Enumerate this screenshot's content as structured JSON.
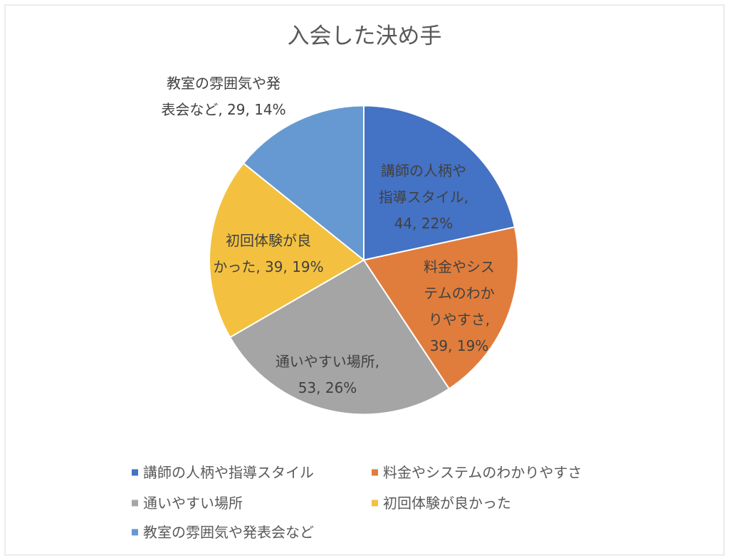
{
  "chart_data": {
    "type": "pie",
    "title": "入会した決め手",
    "categories": [
      "講師の人柄や指導スタイル",
      "料金やシステムのわかりやすさ",
      "通いやすい場所",
      "初回体験が良かった",
      "教室の雰囲気や発表会など"
    ],
    "values": [
      44,
      39,
      53,
      39,
      29
    ],
    "colors": [
      "#4472C4",
      "#E07D3C",
      "#A5A5A5",
      "#F3C13F",
      "#6699D1"
    ],
    "data_labels": [
      [
        "講師の人柄や",
        "指導スタイル,",
        "44, 22%"
      ],
      [
        "料金やシス",
        "テムのわか",
        "りやすさ,",
        "39, 19%"
      ],
      [
        "通いやすい場所,",
        "53, 26%"
      ],
      [
        "初回体験が良",
        "かった, 39, 19%"
      ],
      [
        "教室の雰囲気や発",
        "表会など, 29, 14%"
      ]
    ],
    "legend": "bottom"
  }
}
